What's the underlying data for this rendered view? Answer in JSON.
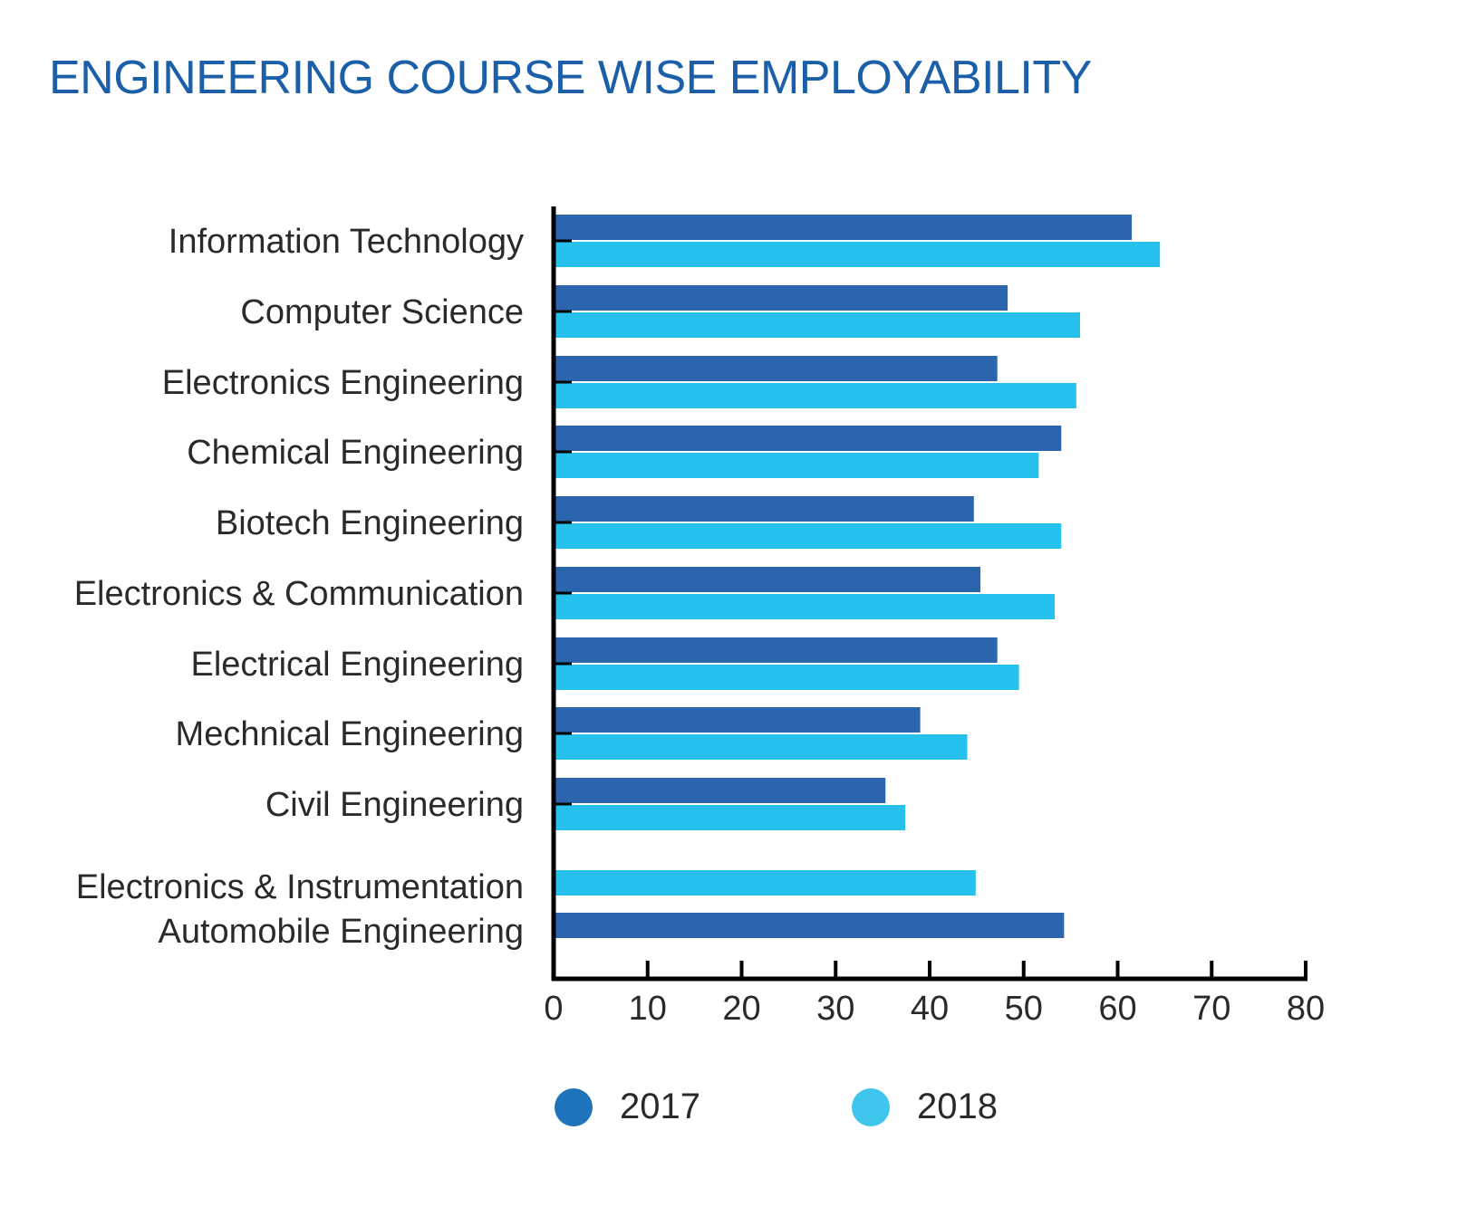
{
  "chart_data": {
    "type": "bar",
    "orientation": "horizontal",
    "title": "ENGINEERING COURSE WISE EMPLOYABILITY",
    "xlabel": "",
    "ylabel": "",
    "xlim": [
      0,
      80
    ],
    "xticks": [
      "0",
      "10",
      "20",
      "30",
      "40",
      "50",
      "60",
      "70",
      "80"
    ],
    "grid": false,
    "legend_position": "bottom",
    "categories": [
      "Information Technology",
      "Computer Science",
      "Electronics Engineering",
      "Chemical Engineering",
      "Biotech Engineering",
      "Electronics & Communication",
      "Electrical Engineering",
      "Mechnical Engineering",
      "Civil Engineering",
      "Electronics & Instrumentation",
      "Automobile Engineering"
    ],
    "series": [
      {
        "name": "2017",
        "color": "#2a65ae",
        "values": [
          61.5,
          48.3,
          47.2,
          54,
          44.7,
          45.4,
          47.2,
          39,
          35.3,
          null,
          54.3
        ]
      },
      {
        "name": "2018",
        "color": "#27c1ee",
        "values": [
          64.5,
          56,
          55.6,
          51.6,
          54,
          53.3,
          49.5,
          44,
          37.4,
          44.9,
          null
        ]
      }
    ]
  },
  "legend": {
    "items": [
      {
        "label": "2017",
        "color": "#1f73ba"
      },
      {
        "label": "2018",
        "color": "#3ec6ec"
      }
    ]
  }
}
